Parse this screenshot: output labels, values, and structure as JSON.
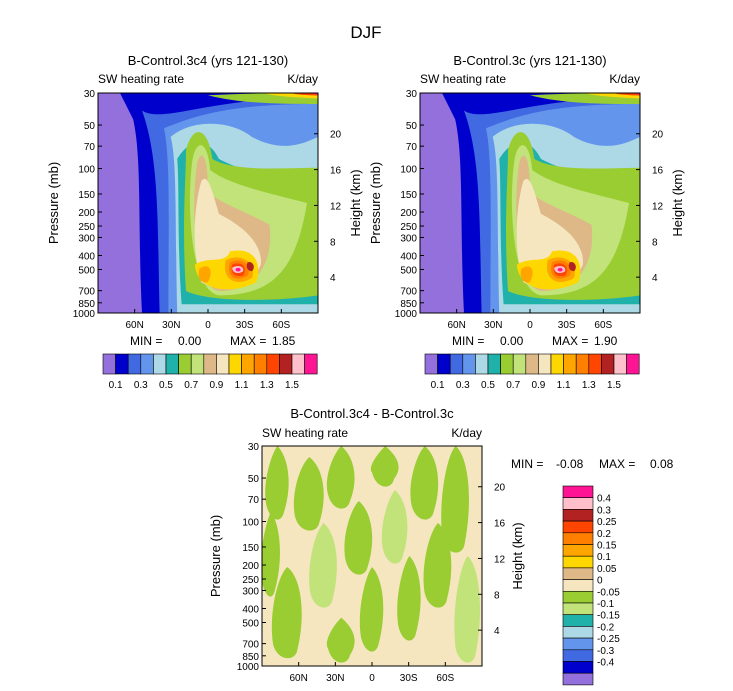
{
  "page_title": "DJF",
  "palette_main": [
    "#9370DB",
    "#0000CD",
    "#4169E1",
    "#6495ED",
    "#ADD8E6",
    "#20B2AA",
    "#9ACD32",
    "#C1E37A",
    "#DEB887",
    "#F5E6C0",
    "#FFD700",
    "#FFA500",
    "#FF7F00",
    "#FF4500",
    "#B22222",
    "#FFC0CB",
    "#FF1493"
  ],
  "palette_diff": [
    "#9370DB",
    "#0000CD",
    "#4169E1",
    "#6495ED",
    "#ADD8E6",
    "#20B2AA",
    "#9ACD32",
    "#C1E37A",
    "#F5E6C0",
    "#DEB887",
    "#FFD700",
    "#FFA500",
    "#FF7F00",
    "#FF4500",
    "#B22222",
    "#FFC0CB",
    "#FF1493"
  ],
  "chart_data": [
    {
      "id": "p1",
      "type": "heatmap",
      "title": "B-Control.3c4 (yrs 121-130)",
      "field": "SW heating rate",
      "units": "K/day",
      "ylabel": "Pressure (mb)",
      "ylabel_right": "Height (km)",
      "pressure_ticks": [
        "30",
        "50",
        "70",
        "100",
        "150",
        "200",
        "250",
        "300",
        "400",
        "500",
        "700",
        "850",
        "1000"
      ],
      "height_ticks": [
        "20",
        "16",
        "12",
        "8",
        "4"
      ],
      "x_ticks": [
        "60N",
        "30N",
        "0",
        "30S",
        "60S"
      ],
      "min_label": "MIN =",
      "min": "0.00",
      "max_label": "MAX =",
      "max": "1.85",
      "colorbar_labels": [
        "0.1",
        "0.3",
        "0.5",
        "0.7",
        "0.9",
        "1.1",
        "1.3",
        "1.5"
      ],
      "levels": [
        0.1,
        0.2,
        0.3,
        0.4,
        0.5,
        0.6,
        0.7,
        0.8,
        0.9,
        1.0,
        1.1,
        1.2,
        1.3,
        1.4,
        1.5,
        1.6
      ]
    },
    {
      "id": "p2",
      "type": "heatmap",
      "title": "B-Control.3c (yrs 121-130)",
      "field": "SW heating rate",
      "units": "K/day",
      "ylabel": "Pressure (mb)",
      "ylabel_right": "Height (km)",
      "pressure_ticks": [
        "30",
        "50",
        "70",
        "100",
        "150",
        "200",
        "250",
        "300",
        "400",
        "500",
        "700",
        "850",
        "1000"
      ],
      "height_ticks": [
        "20",
        "16",
        "12",
        "8",
        "4"
      ],
      "x_ticks": [
        "60N",
        "30N",
        "0",
        "30S",
        "60S"
      ],
      "min_label": "MIN =",
      "min": "0.00",
      "max_label": "MAX =",
      "max": "1.90",
      "colorbar_labels": [
        "0.1",
        "0.3",
        "0.5",
        "0.7",
        "0.9",
        "1.1",
        "1.3",
        "1.5"
      ],
      "levels": [
        0.1,
        0.2,
        0.3,
        0.4,
        0.5,
        0.6,
        0.7,
        0.8,
        0.9,
        1.0,
        1.1,
        1.2,
        1.3,
        1.4,
        1.5,
        1.6
      ]
    },
    {
      "id": "p3",
      "type": "heatmap",
      "title": "B-Control.3c4 - B-Control.3c",
      "field": "SW heating rate",
      "units": "K/day",
      "ylabel": "Pressure (mb)",
      "ylabel_right": "Height (km)",
      "pressure_ticks": [
        "30",
        "50",
        "70",
        "100",
        "150",
        "200",
        "250",
        "300",
        "400",
        "500",
        "700",
        "850",
        "1000"
      ],
      "height_ticks": [
        "20",
        "16",
        "12",
        "8",
        "4"
      ],
      "x_ticks": [
        "60N",
        "30N",
        "0",
        "30S",
        "60S"
      ],
      "min_label": "MIN =",
      "min": "-0.08",
      "max_label": "MAX =",
      "max": "0.08",
      "colorbar_labels": [
        "0.4",
        "0.3",
        "0.25",
        "0.2",
        "0.15",
        "0.1",
        "0.05",
        "0",
        "-0.05",
        "-0.1",
        "-0.15",
        "-0.2",
        "-0.25",
        "-0.3",
        "-0.4"
      ],
      "levels": [
        -0.4,
        -0.3,
        -0.25,
        -0.2,
        -0.15,
        -0.1,
        -0.05,
        0,
        0.05,
        0.1,
        0.15,
        0.2,
        0.25,
        0.3,
        0.4
      ]
    }
  ]
}
